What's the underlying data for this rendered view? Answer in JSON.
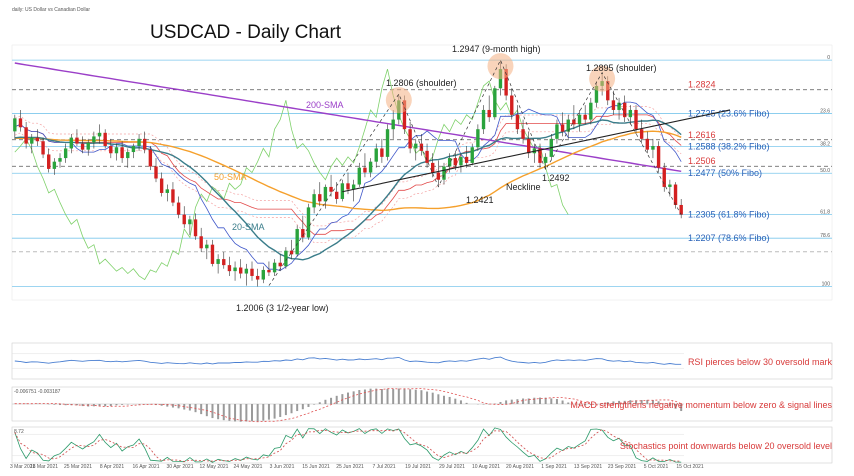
{
  "chart_data": [
    {
      "type": "candlestick",
      "header": "daily: US Dollar vs Canadian Dollar",
      "title": "USDCAD - Daily Chart",
      "x_labels": [
        "3 Mar 2021",
        "18 Mar 2021",
        "25 Mar 2021",
        "8 Apr 2021",
        "16 Apr 2021",
        "30 Apr 2021",
        "12 May 2021",
        "24 May 2021",
        "3 Jun 2021",
        "15 Jun 2021",
        "25 Jun 2021",
        "7 Jul 2021",
        "19 Jul 2021",
        "29 Jul 2021",
        "10 Aug 2021",
        "20 Aug 2021",
        "1 Sep 2021",
        "13 Sep 2021",
        "23 Sep 2021",
        "5 Oct 2021",
        "15 Oct 2021"
      ],
      "ylim": [
        1.195,
        1.301
      ],
      "fib_levels": [
        {
          "ratio": "0",
          "price": 1.2947
        },
        {
          "ratio": "23.6",
          "price": 1.2725,
          "label": "1.2725 (23.6% Fibo)"
        },
        {
          "ratio": "38.2",
          "price": 1.2588,
          "label": "1.2588 (38.2% Fibo)"
        },
        {
          "ratio": "50.0",
          "price": 1.2477,
          "label": "1.2477 (50% Fibo)"
        },
        {
          "ratio": "61.8",
          "price": 1.2305,
          "label": "1.2305 (61.8% Fibo)"
        },
        {
          "ratio": "78.6",
          "price": 1.2207,
          "label": "1.2207 (78.6% Fibo)"
        },
        {
          "ratio": "100",
          "price": 1.2006
        }
      ],
      "resistance_levels": [
        {
          "price": 1.2824,
          "label": "1.2824"
        },
        {
          "price": 1.2616,
          "label": "1.2616"
        },
        {
          "price": 1.2506,
          "label": "1.2506"
        }
      ],
      "annotations": [
        {
          "text": "1.2947 (9-month high)",
          "price": 1.2947
        },
        {
          "text": "1.2806 (shoulder)",
          "price": 1.2806
        },
        {
          "text": "1.2895 (shoulder)",
          "price": 1.2895
        },
        {
          "text": "1.2421",
          "price": 1.2421
        },
        {
          "text": "1.2492",
          "price": 1.2492
        },
        {
          "text": "Neckline"
        },
        {
          "text": "1.2006 (3 1/2-year low)",
          "price": 1.2006
        }
      ],
      "series": [
        {
          "name": "200-SMA",
          "color": "#9b3fc8"
        },
        {
          "name": "50-SMA",
          "color": "#f5a02c"
        },
        {
          "name": "20-SMA",
          "color": "#3a7d8a"
        }
      ],
      "candles": [
        [
          1.2651,
          1.272,
          1.262,
          1.2705
        ],
        [
          1.2705,
          1.274,
          1.265,
          1.2668
        ],
        [
          1.2668,
          1.269,
          1.258,
          1.26
        ],
        [
          1.26,
          1.264,
          1.256,
          1.2625
        ],
        [
          1.2625,
          1.266,
          1.259,
          1.261
        ],
        [
          1.261,
          1.2625,
          1.254,
          1.2555
        ],
        [
          1.2555,
          1.258,
          1.248,
          1.2495
        ],
        [
          1.2495,
          1.254,
          1.247,
          1.2525
        ],
        [
          1.2525,
          1.256,
          1.25,
          1.254
        ],
        [
          1.254,
          1.26,
          1.252,
          1.258
        ],
        [
          1.258,
          1.264,
          1.256,
          1.2625
        ],
        [
          1.2625,
          1.266,
          1.259,
          1.26
        ],
        [
          1.26,
          1.263,
          1.256,
          1.2575
        ],
        [
          1.2575,
          1.262,
          1.255,
          1.2605
        ],
        [
          1.2605,
          1.265,
          1.258,
          1.263
        ],
        [
          1.263,
          1.268,
          1.26,
          1.2645
        ],
        [
          1.2645,
          1.266,
          1.258,
          1.259
        ],
        [
          1.259,
          1.262,
          1.254,
          1.256
        ],
        [
          1.256,
          1.26,
          1.253,
          1.2585
        ],
        [
          1.2585,
          1.261,
          1.252,
          1.254
        ],
        [
          1.254,
          1.258,
          1.25,
          1.2565
        ],
        [
          1.2565,
          1.26,
          1.254,
          1.259
        ],
        [
          1.259,
          1.264,
          1.257,
          1.262
        ],
        [
          1.262,
          1.265,
          1.256,
          1.2575
        ],
        [
          1.2575,
          1.259,
          1.249,
          1.2505
        ],
        [
          1.2505,
          1.254,
          1.244,
          1.2455
        ],
        [
          1.2455,
          1.248,
          1.238,
          1.2395
        ],
        [
          1.2395,
          1.243,
          1.236,
          1.241
        ],
        [
          1.241,
          1.244,
          1.234,
          1.2355
        ],
        [
          1.2355,
          1.238,
          1.229,
          1.2305
        ],
        [
          1.2305,
          1.234,
          1.225,
          1.2265
        ],
        [
          1.2265,
          1.23,
          1.222,
          1.2285
        ],
        [
          1.2285,
          1.231,
          1.22,
          1.2215
        ],
        [
          1.2215,
          1.225,
          1.215,
          1.2165
        ],
        [
          1.2165,
          1.22,
          1.212,
          1.218
        ],
        [
          1.218,
          1.22,
          1.209,
          1.21
        ],
        [
          1.21,
          1.214,
          1.206,
          1.212
        ],
        [
          1.212,
          1.215,
          1.208,
          1.2095
        ],
        [
          1.2095,
          1.213,
          1.205,
          1.207
        ],
        [
          1.207,
          1.211,
          1.203,
          1.2085
        ],
        [
          1.2085,
          1.212,
          1.204,
          1.206
        ],
        [
          1.206,
          1.21,
          1.201,
          1.208
        ],
        [
          1.208,
          1.211,
          1.203,
          1.205
        ],
        [
          1.205,
          1.208,
          1.2006,
          1.2035
        ],
        [
          1.2035,
          1.209,
          1.202,
          1.2075
        ],
        [
          1.2075,
          1.211,
          1.205,
          1.2065
        ],
        [
          1.2065,
          1.212,
          1.205,
          1.2105
        ],
        [
          1.2105,
          1.214,
          1.207,
          1.209
        ],
        [
          1.209,
          1.217,
          1.208,
          1.2155
        ],
        [
          1.2155,
          1.22,
          1.212,
          1.214
        ],
        [
          1.214,
          1.226,
          1.213,
          1.2245
        ],
        [
          1.2245,
          1.23,
          1.219,
          1.221
        ],
        [
          1.221,
          1.235,
          1.22,
          1.2335
        ],
        [
          1.2335,
          1.241,
          1.231,
          1.239
        ],
        [
          1.239,
          1.244,
          1.234,
          1.236
        ],
        [
          1.236,
          1.243,
          1.233,
          1.242
        ],
        [
          1.242,
          1.247,
          1.238,
          1.24
        ],
        [
          1.24,
          1.244,
          1.235,
          1.237
        ],
        [
          1.237,
          1.245,
          1.236,
          1.2435
        ],
        [
          1.2435,
          1.248,
          1.239,
          1.241
        ],
        [
          1.241,
          1.245,
          1.236,
          1.243
        ],
        [
          1.243,
          1.252,
          1.242,
          1.25
        ],
        [
          1.25,
          1.256,
          1.246,
          1.248
        ],
        [
          1.248,
          1.254,
          1.246,
          1.2525
        ],
        [
          1.2525,
          1.26,
          1.25,
          1.258
        ],
        [
          1.258,
          1.262,
          1.252,
          1.2545
        ],
        [
          1.2545,
          1.268,
          1.253,
          1.266
        ],
        [
          1.266,
          1.274,
          1.262,
          1.27
        ],
        [
          1.27,
          1.2806,
          1.268,
          1.278
        ],
        [
          1.278,
          1.28,
          1.264,
          1.266
        ],
        [
          1.266,
          1.269,
          1.256,
          1.258
        ],
        [
          1.258,
          1.262,
          1.253,
          1.26
        ],
        [
          1.26,
          1.264,
          1.255,
          1.257
        ],
        [
          1.257,
          1.26,
          1.25,
          1.252
        ],
        [
          1.252,
          1.256,
          1.246,
          1.248
        ],
        [
          1.248,
          1.253,
          1.2421,
          1.245
        ],
        [
          1.245,
          1.252,
          1.243,
          1.2505
        ],
        [
          1.2505,
          1.256,
          1.248,
          1.254
        ],
        [
          1.254,
          1.257,
          1.249,
          1.251
        ],
        [
          1.251,
          1.256,
          1.248,
          1.2545
        ],
        [
          1.2545,
          1.259,
          1.25,
          1.252
        ],
        [
          1.252,
          1.26,
          1.251,
          1.2585
        ],
        [
          1.2585,
          1.268,
          1.257,
          1.266
        ],
        [
          1.266,
          1.276,
          1.264,
          1.274
        ],
        [
          1.274,
          1.28,
          1.269,
          1.271
        ],
        [
          1.271,
          1.284,
          1.27,
          1.283
        ],
        [
          1.283,
          1.2947,
          1.28,
          1.291
        ],
        [
          1.291,
          1.293,
          1.278,
          1.28
        ],
        [
          1.28,
          1.283,
          1.27,
          1.272
        ],
        [
          1.272,
          1.276,
          1.264,
          1.266
        ],
        [
          1.266,
          1.27,
          1.26,
          1.262
        ],
        [
          1.262,
          1.265,
          1.254,
          1.256
        ],
        [
          1.256,
          1.26,
          1.252,
          1.258
        ],
        [
          1.258,
          1.26,
          1.25,
          1.252
        ],
        [
          1.252,
          1.256,
          1.2492,
          1.2545
        ],
        [
          1.2545,
          1.264,
          1.253,
          1.262
        ],
        [
          1.262,
          1.27,
          1.26,
          1.268
        ],
        [
          1.268,
          1.273,
          1.263,
          1.265
        ],
        [
          1.265,
          1.272,
          1.262,
          1.27
        ],
        [
          1.27,
          1.276,
          1.266,
          1.268
        ],
        [
          1.268,
          1.274,
          1.265,
          1.272
        ],
        [
          1.272,
          1.276,
          1.268,
          1.27
        ],
        [
          1.27,
          1.279,
          1.268,
          1.277
        ],
        [
          1.277,
          1.286,
          1.275,
          1.284
        ],
        [
          1.284,
          1.2895,
          1.28,
          1.286
        ],
        [
          1.286,
          1.288,
          1.276,
          1.278
        ],
        [
          1.278,
          1.282,
          1.272,
          1.274
        ],
        [
          1.274,
          1.279,
          1.27,
          1.277
        ],
        [
          1.277,
          1.28,
          1.269,
          1.271
        ],
        [
          1.271,
          1.276,
          1.268,
          1.274
        ],
        [
          1.274,
          1.276,
          1.264,
          1.266
        ],
        [
          1.266,
          1.27,
          1.26,
          1.262
        ],
        [
          1.262,
          1.265,
          1.256,
          1.2575
        ],
        [
          1.2575,
          1.262,
          1.254,
          1.259
        ],
        [
          1.259,
          1.261,
          1.248,
          1.25
        ],
        [
          1.25,
          1.252,
          1.24,
          1.242
        ],
        [
          1.242,
          1.245,
          1.238,
          1.243
        ],
        [
          1.243,
          1.244,
          1.233,
          1.2345
        ],
        [
          1.2345,
          1.237,
          1.229,
          1.2305
        ]
      ]
    },
    {
      "type": "line",
      "indicator": "RSI",
      "annotation": "RSI pierces below 30 oversold mark",
      "ylim": [
        0,
        100
      ]
    },
    {
      "type": "bar",
      "indicator": "MACD",
      "header": "-0.006751 -0.003187",
      "annotation": "MACD strengthens negative momentum below zero & signal lines"
    },
    {
      "type": "line",
      "indicator": "Stochastics",
      "header": "8.72",
      "annotation": "Stochastics point downwards below 20 oversold level",
      "ylim": [
        0,
        100
      ]
    }
  ]
}
